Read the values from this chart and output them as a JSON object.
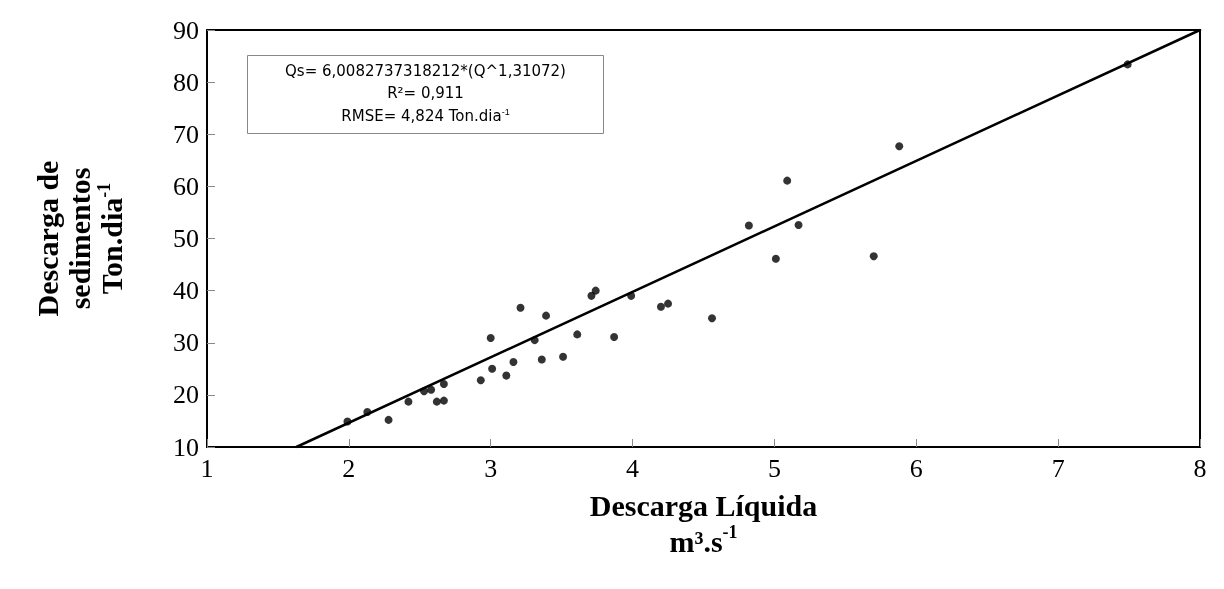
{
  "chart_data": {
    "type": "scatter",
    "xlabel": "Descarga Líquida\nm³.s$^{-1}$",
    "ylabel": "Descarga de\nsedimentos\nTon.dia$^{-1}$",
    "annotations": [
      "Qs= 6,0082737318212*(Q^1,31072)",
      "R²= 0,911",
      "RMSE= 4,824 Ton.dia$^{-1}$"
    ],
    "xlim": [
      1,
      8
    ],
    "xticks": [
      1,
      2,
      3,
      4,
      5,
      6,
      7,
      8
    ],
    "ylim": [
      10,
      90
    ],
    "yticks": [
      10,
      20,
      30,
      40,
      50,
      60,
      70,
      80,
      90
    ],
    "grid": false,
    "marker": "circle",
    "series": [
      {
        "color": "#000000",
        "x": [
          1.99,
          2.13,
          2.28,
          2.42,
          2.53,
          2.58,
          2.67,
          2.62,
          2.67,
          2.93,
          3.0,
          3.01,
          3.11,
          3.16,
          3.21,
          3.31,
          3.36,
          3.39,
          3.51,
          3.61,
          3.71,
          3.74,
          3.87,
          3.99,
          4.2,
          4.25,
          4.56,
          4.82,
          5.01,
          5.09,
          5.17,
          5.7,
          5.88,
          7.49
        ],
        "values": [
          14.9,
          16.7,
          15.2,
          18.7,
          20.7,
          21.0,
          22.1,
          18.7,
          18.9,
          22.8,
          30.9,
          25.0,
          23.7,
          26.3,
          36.7,
          30.5,
          26.8,
          35.2,
          27.3,
          31.6,
          39.0,
          40.0,
          31.1,
          39.0,
          36.9,
          37.5,
          34.7,
          52.5,
          46.1,
          61.1,
          52.6,
          46.6,
          67.7,
          83.4
        ]
      },
      {
        "type": "line",
        "color": "#000000",
        "marker": "none",
        "line_style": "solid",
        "x": [
          1.63,
          8
        ],
        "values": [
          10,
          90
        ]
      }
    ]
  }
}
